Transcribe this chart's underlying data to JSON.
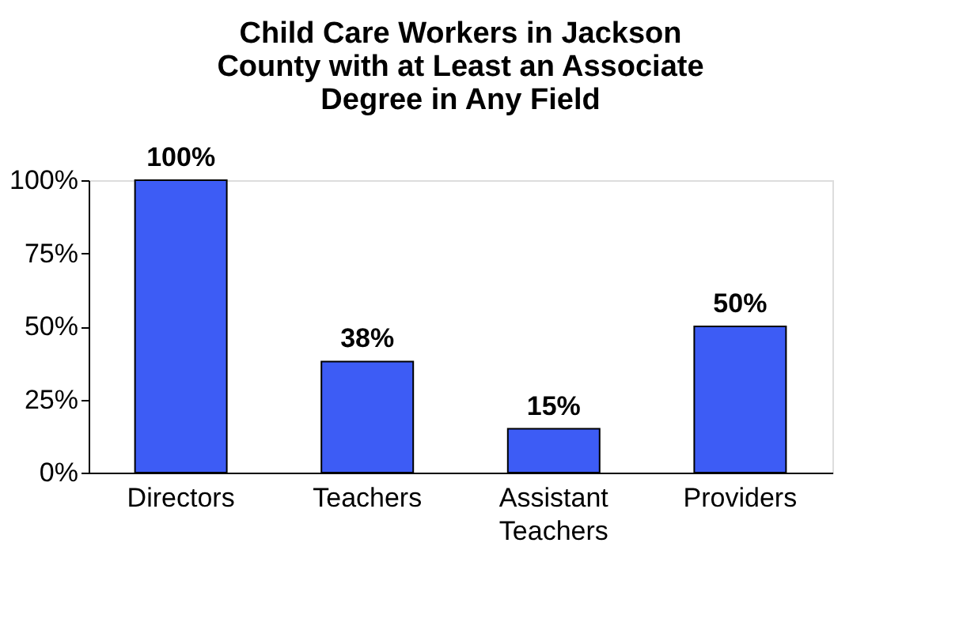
{
  "chart_data": {
    "type": "bar",
    "title": "Child Care Workers in Jackson County with at Least an Associate Degree in Any Field",
    "categories": [
      "Directors",
      "Teachers",
      "Assistant Teachers",
      "Providers"
    ],
    "values": [
      100,
      38,
      15,
      50
    ],
    "color": "#3d5cf5",
    "value_labels": [
      "100%",
      "38%",
      "15%",
      "50%"
    ],
    "ylim": [
      0,
      100
    ],
    "yticks": [
      {
        "value": 0,
        "label": "0%"
      },
      {
        "value": 25,
        "label": "25%"
      },
      {
        "value": 50,
        "label": "50%"
      },
      {
        "value": 75,
        "label": "75%"
      },
      {
        "value": 100,
        "label": "100%"
      }
    ],
    "grid": false
  }
}
